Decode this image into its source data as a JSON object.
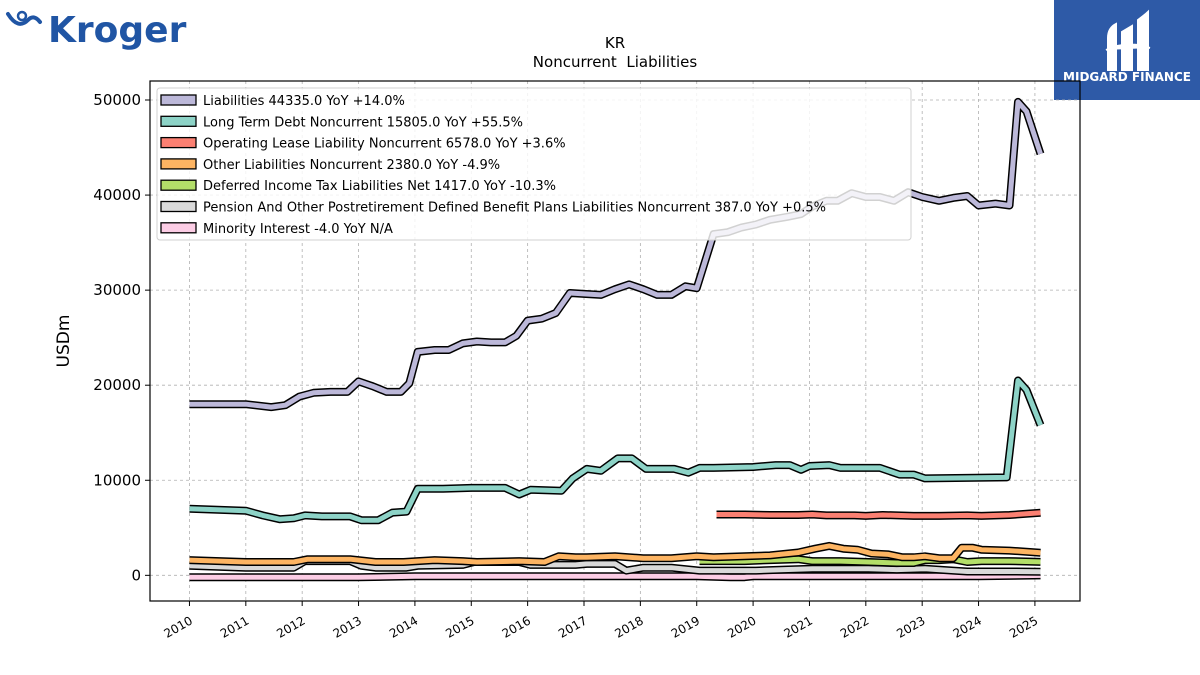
{
  "brand": {
    "company_logo_text": "Kroger",
    "publisher_logo_text": "MIDGARD FINANCE"
  },
  "colors": {
    "publisher_bg": "#2e5aa7",
    "kroger_blue": "#2055a4",
    "grid": "#b0b0b0"
  },
  "chart_data": {
    "type": "line",
    "title": "KR",
    "subtitle": "Noncurrent  Liabilities",
    "ylabel": "USDm",
    "xlabel": "",
    "ylim": [
      -2700,
      52000
    ],
    "xlim": [
      2009.3,
      2025.8
    ],
    "yticks": [
      0,
      10000,
      20000,
      30000,
      40000,
      50000
    ],
    "xticks": [
      2010,
      2011,
      2012,
      2013,
      2014,
      2015,
      2016,
      2017,
      2018,
      2019,
      2020,
      2021,
      2022,
      2023,
      2024,
      2025
    ],
    "grid": true,
    "legend_position": "top-left",
    "series": [
      {
        "name": "Liabilities",
        "legend": "Liabilities  44335.0 YoY +14.0%",
        "color": "#bcb8d9",
        "points": [
          [
            2010.0,
            18000
          ],
          [
            2011.0,
            18000
          ],
          [
            2011.45,
            17700
          ],
          [
            2011.7,
            17900
          ],
          [
            2011.95,
            18800
          ],
          [
            2012.2,
            19200
          ],
          [
            2012.5,
            19300
          ],
          [
            2012.8,
            19300
          ],
          [
            2013.0,
            20400
          ],
          [
            2013.25,
            19900
          ],
          [
            2013.5,
            19300
          ],
          [
            2013.75,
            19300
          ],
          [
            2013.9,
            20200
          ],
          [
            2014.05,
            23500
          ],
          [
            2014.35,
            23700
          ],
          [
            2014.6,
            23700
          ],
          [
            2014.85,
            24400
          ],
          [
            2015.1,
            24600
          ],
          [
            2015.35,
            24500
          ],
          [
            2015.6,
            24500
          ],
          [
            2015.8,
            25200
          ],
          [
            2016.0,
            26800
          ],
          [
            2016.25,
            27000
          ],
          [
            2016.5,
            27600
          ],
          [
            2016.75,
            29700
          ],
          [
            2017.0,
            29600
          ],
          [
            2017.3,
            29500
          ],
          [
            2017.55,
            30100
          ],
          [
            2017.8,
            30600
          ],
          [
            2018.05,
            30100
          ],
          [
            2018.3,
            29500
          ],
          [
            2018.55,
            29500
          ],
          [
            2018.8,
            30400
          ],
          [
            2019.0,
            30200
          ],
          [
            2019.3,
            35900
          ],
          [
            2019.55,
            36100
          ],
          [
            2019.8,
            36600
          ],
          [
            2020.05,
            36900
          ],
          [
            2020.3,
            37400
          ],
          [
            2020.6,
            37700
          ],
          [
            2020.85,
            38000
          ],
          [
            2021.05,
            38800
          ],
          [
            2021.3,
            39400
          ],
          [
            2021.5,
            39400
          ],
          [
            2021.75,
            40200
          ],
          [
            2022.0,
            39800
          ],
          [
            2022.25,
            39800
          ],
          [
            2022.5,
            39400
          ],
          [
            2022.75,
            40300
          ],
          [
            2023.0,
            39800
          ],
          [
            2023.3,
            39400
          ],
          [
            2023.55,
            39700
          ],
          [
            2023.8,
            39900
          ],
          [
            2024.0,
            38900
          ],
          [
            2024.3,
            39100
          ],
          [
            2024.55,
            38900
          ],
          [
            2024.7,
            49800
          ],
          [
            2024.85,
            48800
          ],
          [
            2025.1,
            44335
          ]
        ]
      },
      {
        "name": "Long Term Debt Noncurrent",
        "legend": "Long Term Debt Noncurrent  15805.0 YoY +55.5%",
        "color": "#8dd3c7",
        "points": [
          [
            2010.0,
            7000
          ],
          [
            2011.0,
            6800
          ],
          [
            2011.3,
            6300
          ],
          [
            2011.6,
            5900
          ],
          [
            2011.85,
            6000
          ],
          [
            2012.05,
            6300
          ],
          [
            2012.35,
            6200
          ],
          [
            2012.85,
            6200
          ],
          [
            2013.05,
            5800
          ],
          [
            2013.35,
            5800
          ],
          [
            2013.6,
            6600
          ],
          [
            2013.85,
            6700
          ],
          [
            2014.05,
            9100
          ],
          [
            2014.5,
            9100
          ],
          [
            2015.0,
            9200
          ],
          [
            2015.6,
            9200
          ],
          [
            2015.85,
            8500
          ],
          [
            2016.05,
            9000
          ],
          [
            2016.6,
            8900
          ],
          [
            2016.8,
            10200
          ],
          [
            2017.05,
            11200
          ],
          [
            2017.3,
            11000
          ],
          [
            2017.6,
            12300
          ],
          [
            2017.85,
            12300
          ],
          [
            2018.1,
            11200
          ],
          [
            2018.6,
            11200
          ],
          [
            2018.85,
            10800
          ],
          [
            2019.05,
            11300
          ],
          [
            2019.3,
            11300
          ],
          [
            2020.0,
            11400
          ],
          [
            2020.4,
            11600
          ],
          [
            2020.65,
            11600
          ],
          [
            2020.85,
            11100
          ],
          [
            2021.0,
            11500
          ],
          [
            2021.35,
            11600
          ],
          [
            2021.55,
            11300
          ],
          [
            2022.25,
            11300
          ],
          [
            2022.6,
            10600
          ],
          [
            2022.85,
            10600
          ],
          [
            2023.05,
            10200
          ],
          [
            2024.5,
            10300
          ],
          [
            2024.7,
            20500
          ],
          [
            2024.85,
            19500
          ],
          [
            2025.1,
            15805
          ]
        ]
      },
      {
        "name": "Operating Lease Liability Noncurrent",
        "legend": "Operating Lease Liability Noncurrent  6578.0 YoY +3.6%",
        "color": "#fb8072",
        "points": [
          [
            2019.35,
            6400
          ],
          [
            2019.85,
            6400
          ],
          [
            2020.3,
            6350
          ],
          [
            2020.8,
            6350
          ],
          [
            2021.05,
            6400
          ],
          [
            2021.3,
            6300
          ],
          [
            2021.8,
            6300
          ],
          [
            2022.0,
            6250
          ],
          [
            2022.3,
            6350
          ],
          [
            2022.85,
            6250
          ],
          [
            2023.3,
            6250
          ],
          [
            2023.8,
            6300
          ],
          [
            2024.05,
            6250
          ],
          [
            2024.55,
            6350
          ],
          [
            2025.1,
            6578
          ]
        ]
      },
      {
        "name": "Other Liabilities Noncurrent",
        "legend": "Other Liabilities Noncurrent  2380.0 YoY -4.9%",
        "color": "#fdb462",
        "points": [
          [
            2010.0,
            1600
          ],
          [
            2011.0,
            1400
          ],
          [
            2011.85,
            1400
          ],
          [
            2012.1,
            1700
          ],
          [
            2012.85,
            1700
          ],
          [
            2013.3,
            1400
          ],
          [
            2013.8,
            1400
          ],
          [
            2014.05,
            1500
          ],
          [
            2014.35,
            1600
          ],
          [
            2014.85,
            1500
          ],
          [
            2015.1,
            1400
          ],
          [
            2015.85,
            1500
          ],
          [
            2016.3,
            1400
          ],
          [
            2016.55,
            2000
          ],
          [
            2016.85,
            1900
          ],
          [
            2017.05,
            1900
          ],
          [
            2017.55,
            2000
          ],
          [
            2018.05,
            1800
          ],
          [
            2018.55,
            1800
          ],
          [
            2019.0,
            2000
          ],
          [
            2019.3,
            1900
          ],
          [
            2019.85,
            2000
          ],
          [
            2020.3,
            2100
          ],
          [
            2020.8,
            2400
          ],
          [
            2021.1,
            2800
          ],
          [
            2021.35,
            3100
          ],
          [
            2021.6,
            2800
          ],
          [
            2021.85,
            2700
          ],
          [
            2022.1,
            2300
          ],
          [
            2022.4,
            2200
          ],
          [
            2022.65,
            1900
          ],
          [
            2022.85,
            1900
          ],
          [
            2023.05,
            2000
          ],
          [
            2023.3,
            1800
          ],
          [
            2023.55,
            1800
          ],
          [
            2023.7,
            2900
          ],
          [
            2023.9,
            2900
          ],
          [
            2024.05,
            2700
          ],
          [
            2024.55,
            2600
          ],
          [
            2025.1,
            2380
          ]
        ]
      },
      {
        "name": "Deferred Income Tax Liabilities Net",
        "legend": "Deferred Income Tax Liabilities Net  1417.0 YoY -10.3%",
        "color": "#b3de69",
        "points": [
          [
            2019.05,
            1500
          ],
          [
            2019.85,
            1500
          ],
          [
            2020.3,
            1600
          ],
          [
            2020.8,
            1700
          ],
          [
            2021.05,
            1500
          ],
          [
            2021.55,
            1500
          ],
          [
            2022.05,
            1400
          ],
          [
            2022.55,
            1300
          ],
          [
            2022.85,
            1300
          ],
          [
            2023.05,
            1600
          ],
          [
            2023.3,
            1600
          ],
          [
            2023.55,
            1700
          ],
          [
            2023.8,
            1400
          ],
          [
            2024.05,
            1500
          ],
          [
            2024.55,
            1500
          ],
          [
            2025.1,
            1417
          ]
        ]
      },
      {
        "name": "Pension And Other Postretirement Defined Benefit Plans Liabilities Noncurrent",
        "legend": "Pension And Other Postretirement Defined Benefit Plans Liabilities Noncurrent  387.0 YoY +0.5%",
        "color": "#d9d9d9",
        "points": [
          [
            2010.0,
            1000
          ],
          [
            2011.0,
            800
          ],
          [
            2011.85,
            800
          ],
          [
            2012.05,
            1500
          ],
          [
            2012.85,
            1500
          ],
          [
            2013.05,
            1000
          ],
          [
            2013.3,
            800
          ],
          [
            2013.85,
            800
          ],
          [
            2014.05,
            1000
          ],
          [
            2014.85,
            1100
          ],
          [
            2015.05,
            1400
          ],
          [
            2015.85,
            1400
          ],
          [
            2016.05,
            1100
          ],
          [
            2016.55,
            1100
          ],
          [
            2016.85,
            1100
          ],
          [
            2017.05,
            1200
          ],
          [
            2017.55,
            1200
          ],
          [
            2017.75,
            500
          ],
          [
            2018.05,
            800
          ],
          [
            2018.55,
            800
          ],
          [
            2019.05,
            500
          ],
          [
            2019.55,
            500
          ],
          [
            2020.05,
            500
          ],
          [
            2020.55,
            600
          ],
          [
            2021.05,
            700
          ],
          [
            2021.55,
            700
          ],
          [
            2022.05,
            700
          ],
          [
            2022.55,
            600
          ],
          [
            2023.05,
            700
          ],
          [
            2023.55,
            500
          ],
          [
            2023.8,
            400
          ],
          [
            2024.55,
            400
          ],
          [
            2025.1,
            387
          ]
        ]
      },
      {
        "name": "Minority Interest",
        "legend": "Minority Interest  -4.0 YoY N/A",
        "color": "#fccde5",
        "points": [
          [
            2010.0,
            -200
          ],
          [
            2011.0,
            -200
          ],
          [
            2012.0,
            -200
          ],
          [
            2013.0,
            -200
          ],
          [
            2014.0,
            -100
          ],
          [
            2015.0,
            -100
          ],
          [
            2016.0,
            -100
          ],
          [
            2017.0,
            -100
          ],
          [
            2018.0,
            -100
          ],
          [
            2019.0,
            -100
          ],
          [
            2019.6,
            -200
          ],
          [
            2019.85,
            -200
          ],
          [
            2020.0,
            -100
          ],
          [
            2021.0,
            -100
          ],
          [
            2022.0,
            -100
          ],
          [
            2023.0,
            -100
          ],
          [
            2024.0,
            -100
          ],
          [
            2025.1,
            -4
          ]
        ]
      }
    ]
  }
}
